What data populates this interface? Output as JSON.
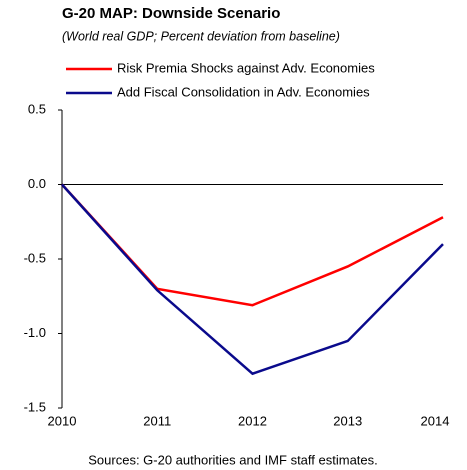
{
  "chart_data": {
    "type": "line",
    "title": "G-20 MAP: Downside Scenario",
    "subtitle": "(World real GDP; Percent deviation from baseline)",
    "x": [
      2010,
      2011,
      2012,
      2013,
      2014
    ],
    "xlim": [
      2010,
      2014
    ],
    "series": [
      {
        "name": "Risk Premia Shocks against Adv. Economies",
        "color": "#ff0000",
        "values": [
          0,
          -0.7,
          -0.81,
          -0.55,
          -0.22
        ]
      },
      {
        "name": "Add Fiscal Consolidation in Adv. Economies",
        "color": "#0a0a8c",
        "values": [
          0,
          -0.71,
          -1.27,
          -1.05,
          -0.4
        ]
      }
    ],
    "ylim": [
      -1.5,
      0.5
    ],
    "yticks": [
      0.5,
      {
        "value": 0,
        "label": "0.0"
      },
      -0.5,
      {
        "value": -1,
        "label": "-1.0"
      },
      -1.5
    ],
    "source": "Sources: G-20 authorities and IMF staff estimates."
  }
}
